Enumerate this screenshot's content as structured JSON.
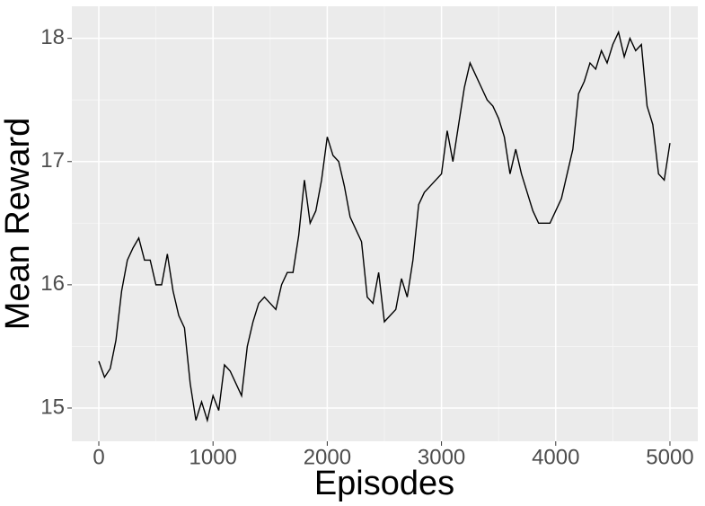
{
  "chart_data": {
    "type": "line",
    "x_label": "Episodes",
    "y_label": "Mean Reward",
    "x": [
      0,
      50,
      100,
      150,
      200,
      250,
      300,
      350,
      400,
      450,
      500,
      550,
      600,
      650,
      700,
      750,
      800,
      850,
      900,
      950,
      1000,
      1050,
      1100,
      1150,
      1200,
      1250,
      1300,
      1350,
      1400,
      1450,
      1500,
      1550,
      1600,
      1650,
      1700,
      1750,
      1800,
      1850,
      1900,
      1950,
      2000,
      2050,
      2100,
      2150,
      2200,
      2250,
      2300,
      2350,
      2400,
      2450,
      2500,
      2550,
      2600,
      2650,
      2700,
      2750,
      2800,
      2850,
      2900,
      2950,
      3000,
      3050,
      3100,
      3150,
      3200,
      3250,
      3300,
      3350,
      3400,
      3450,
      3500,
      3550,
      3600,
      3650,
      3700,
      3750,
      3800,
      3850,
      3900,
      3950,
      4000,
      4050,
      4100,
      4150,
      4200,
      4250,
      4300,
      4350,
      4400,
      4450,
      4500,
      4550,
      4600,
      4650,
      4700,
      4750,
      4800,
      4850,
      4900,
      4950,
      5000
    ],
    "values": [
      15.38,
      15.25,
      15.32,
      15.55,
      15.95,
      16.2,
      16.3,
      16.38,
      16.2,
      16.2,
      16.0,
      16.0,
      16.25,
      15.95,
      15.75,
      15.65,
      15.2,
      14.9,
      15.05,
      14.9,
      15.1,
      14.98,
      15.35,
      15.3,
      15.2,
      15.1,
      15.5,
      15.7,
      15.85,
      15.9,
      15.85,
      15.8,
      16.0,
      16.1,
      16.1,
      16.4,
      16.85,
      16.5,
      16.6,
      16.85,
      17.2,
      17.05,
      17.0,
      16.8,
      16.55,
      16.45,
      16.35,
      15.9,
      15.85,
      16.1,
      15.7,
      15.75,
      15.8,
      16.05,
      15.9,
      16.2,
      16.65,
      16.75,
      16.8,
      16.85,
      16.9,
      17.25,
      17.0,
      17.3,
      17.6,
      17.8,
      17.7,
      17.6,
      17.5,
      17.45,
      17.35,
      17.2,
      16.9,
      17.1,
      16.9,
      16.75,
      16.6,
      16.5,
      16.5,
      16.5,
      16.6,
      16.7,
      16.9,
      17.1,
      17.55,
      17.65,
      17.8,
      17.75,
      17.9,
      17.8,
      17.95,
      18.05,
      17.85,
      18.0,
      17.9,
      17.95,
      17.45,
      17.3,
      16.9,
      16.85,
      17.15
    ],
    "color": "#000000",
    "xlim": [
      -236,
      5244
    ],
    "ylim": [
      14.73,
      18.26
    ],
    "xticks": [
      0,
      1000,
      2000,
      3000,
      4000,
      5000
    ],
    "yticks": [
      15,
      16,
      17,
      18
    ],
    "grid": true
  }
}
